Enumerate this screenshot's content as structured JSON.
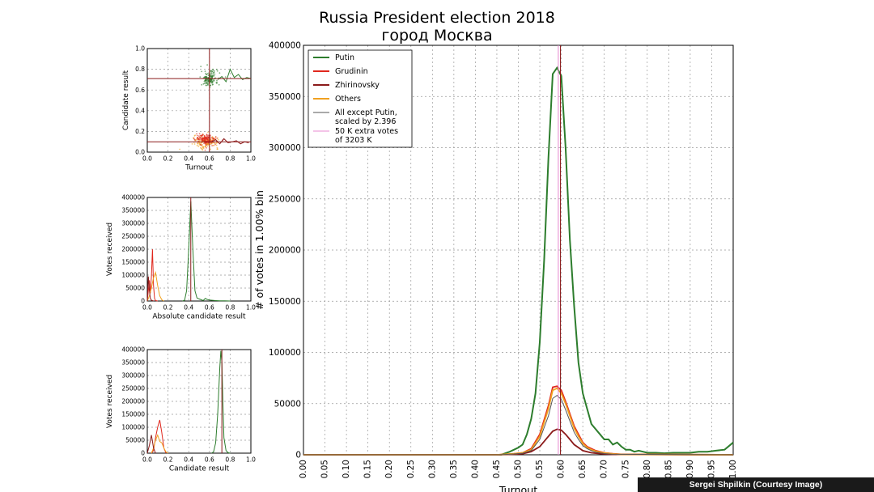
{
  "title": "Russia President election 2018",
  "subtitle": "город Москва",
  "credit": "Sergei Shpilkin (Courtesy Image)",
  "colors": {
    "putin": "#2d7d2d",
    "grudinin": "#e0281e",
    "zhirinovsky": "#8b1a1a",
    "others": "#f0a020",
    "all_except": "#555555",
    "extra": "#e88ad0"
  },
  "chart_data": [
    {
      "id": "scatter",
      "type": "scatter",
      "xlabel": "Turnout",
      "ylabel": "Candidate result",
      "xlim": [
        0,
        1
      ],
      "ylim": [
        0,
        1
      ],
      "xticks": [
        "0.0",
        "0.2",
        "0.4",
        "0.6",
        "0.8",
        "1.0"
      ],
      "yticks": [
        "0.0",
        "0.2",
        "0.4",
        "0.6",
        "0.8",
        "1.0"
      ],
      "grid": true,
      "hline": 0.71,
      "vline": 0.6,
      "clusters": [
        {
          "name": "Putin",
          "cx": 0.6,
          "cy": 0.71,
          "sx": 0.04,
          "sy": 0.04
        },
        {
          "name": "Others",
          "cx": 0.57,
          "cy": 0.1,
          "sx": 0.06,
          "sy": 0.03
        },
        {
          "name": "Grudinin",
          "cx": 0.57,
          "cy": 0.12,
          "sx": 0.05,
          "sy": 0.025
        }
      ],
      "putin_trend": {
        "x": [
          0.68,
          0.72,
          0.76,
          0.8,
          0.84,
          0.88,
          0.92,
          0.96,
          1.0
        ],
        "y": [
          0.7,
          0.73,
          0.68,
          0.8,
          0.72,
          0.75,
          0.7,
          0.72,
          0.71
        ]
      },
      "others_trend": {
        "x": [
          0.62,
          0.66,
          0.7,
          0.74,
          0.78,
          0.82,
          0.86,
          0.9,
          0.94,
          0.98
        ],
        "y": [
          0.1,
          0.12,
          0.08,
          0.13,
          0.09,
          0.1,
          0.11,
          0.08,
          0.1,
          0.09
        ]
      }
    },
    {
      "id": "absolute",
      "type": "line",
      "xlabel": "Absolute candidate result",
      "ylabel": "Votes received",
      "xlim": [
        0,
        1
      ],
      "ylim": [
        0,
        400000
      ],
      "xticks": [
        "0.0",
        "0.2",
        "0.4",
        "0.6",
        "0.8",
        "1.0"
      ],
      "yticks": [
        "0",
        "50000",
        "100000",
        "150000",
        "200000",
        "250000",
        "300000",
        "350000",
        "400000"
      ],
      "grid": true,
      "vline": 0.42,
      "series": [
        {
          "name": "Putin",
          "x": [
            0.34,
            0.36,
            0.38,
            0.4,
            0.42,
            0.44,
            0.46,
            0.48,
            0.5,
            0.52,
            0.54,
            0.56,
            0.58,
            0.6,
            0.65,
            0.7,
            0.75,
            0.8
          ],
          "y": [
            0,
            3000,
            40000,
            200000,
            385000,
            200000,
            40000,
            12000,
            8000,
            5000,
            2000,
            10000,
            6000,
            4000,
            2000,
            1000,
            500,
            0
          ]
        },
        {
          "name": "Grudinin",
          "x": [
            0,
            0.01,
            0.02,
            0.03,
            0.04,
            0.05,
            0.06,
            0.07,
            0.08,
            0.1
          ],
          "y": [
            0,
            40000,
            80000,
            30000,
            95000,
            200000,
            60000,
            10000,
            2000,
            0
          ]
        },
        {
          "name": "Others",
          "x": [
            0,
            0.02,
            0.04,
            0.06,
            0.08,
            0.1,
            0.12,
            0.14,
            0.16
          ],
          "y": [
            0,
            20000,
            50000,
            90000,
            110000,
            60000,
            20000,
            5000,
            0
          ]
        },
        {
          "name": "Zhirinovsky",
          "x": [
            0,
            0.01,
            0.02,
            0.03,
            0.04,
            0.06
          ],
          "y": [
            0,
            95000,
            40000,
            10000,
            3000,
            0
          ]
        }
      ]
    },
    {
      "id": "relative",
      "type": "line",
      "xlabel": "Candidate result",
      "ylabel": "Votes received",
      "xlim": [
        0,
        1
      ],
      "ylim": [
        0,
        400000
      ],
      "xticks": [
        "0.0",
        "0.2",
        "0.4",
        "0.6",
        "0.8",
        "1.0"
      ],
      "yticks": [
        "0",
        "50000",
        "100000",
        "150000",
        "200000",
        "250000",
        "300000",
        "350000",
        "400000"
      ],
      "grid": true,
      "vline": 0.72,
      "series": [
        {
          "name": "Putin",
          "x": [
            0.62,
            0.64,
            0.66,
            0.68,
            0.7,
            0.71,
            0.72,
            0.73,
            0.74,
            0.76,
            0.78,
            0.8
          ],
          "y": [
            0,
            5000,
            40000,
            150000,
            330000,
            395000,
            350000,
            200000,
            60000,
            10000,
            2000,
            0
          ]
        },
        {
          "name": "Grudinin",
          "x": [
            0.04,
            0.06,
            0.08,
            0.1,
            0.12,
            0.14,
            0.16,
            0.18
          ],
          "y": [
            0,
            10000,
            60000,
            100000,
            128000,
            80000,
            20000,
            0
          ]
        },
        {
          "name": "Others",
          "x": [
            0.04,
            0.06,
            0.08,
            0.1,
            0.12,
            0.14,
            0.16,
            0.18,
            0.2
          ],
          "y": [
            0,
            20000,
            50000,
            70000,
            45000,
            40000,
            20000,
            5000,
            0
          ]
        },
        {
          "name": "Zhirinovsky",
          "x": [
            0,
            0.02,
            0.04,
            0.06,
            0.08
          ],
          "y": [
            0,
            30000,
            70000,
            20000,
            0
          ]
        }
      ]
    },
    {
      "id": "main",
      "type": "line",
      "xlabel": "Turnout",
      "ylabel": "# of votes in 1.00% bin",
      "xlim": [
        0,
        1
      ],
      "ylim": [
        0,
        400000
      ],
      "xticks": [
        "0.00",
        "0.05",
        "0.10",
        "0.15",
        "0.20",
        "0.25",
        "0.30",
        "0.35",
        "0.40",
        "0.45",
        "0.50",
        "0.55",
        "0.60",
        "0.65",
        "0.70",
        "0.75",
        "0.80",
        "0.85",
        "0.90",
        "0.95",
        "1.00"
      ],
      "yticks": [
        "0",
        "50000",
        "100000",
        "150000",
        "200000",
        "250000",
        "300000",
        "350000",
        "400000"
      ],
      "grid": true,
      "vlines": [
        0.593,
        0.598
      ],
      "legend_position": "top-left",
      "series": [
        {
          "name": "Putin",
          "x": [
            0,
            0.45,
            0.46,
            0.47,
            0.48,
            0.49,
            0.5,
            0.51,
            0.52,
            0.53,
            0.54,
            0.55,
            0.56,
            0.57,
            0.58,
            0.59,
            0.6,
            0.61,
            0.62,
            0.63,
            0.64,
            0.65,
            0.66,
            0.67,
            0.68,
            0.69,
            0.7,
            0.71,
            0.72,
            0.73,
            0.74,
            0.75,
            0.76,
            0.77,
            0.78,
            0.79,
            0.8,
            0.82,
            0.84,
            0.86,
            0.88,
            0.9,
            0.92,
            0.94,
            0.96,
            0.98,
            1.0
          ],
          "y": [
            0,
            0,
            0,
            1500,
            3000,
            5000,
            7000,
            10000,
            20000,
            35000,
            60000,
            110000,
            190000,
            290000,
            372000,
            378000,
            370000,
            300000,
            210000,
            145000,
            90000,
            60000,
            45000,
            30000,
            25000,
            20000,
            15000,
            15000,
            10000,
            12000,
            8000,
            5000,
            5000,
            3000,
            4000,
            3000,
            2000,
            2000,
            1500,
            2000,
            2000,
            2000,
            3000,
            3000,
            4000,
            5000,
            12000
          ]
        },
        {
          "name": "Grudinin",
          "x": [
            0,
            0.45,
            0.47,
            0.49,
            0.51,
            0.53,
            0.55,
            0.57,
            0.58,
            0.59,
            0.6,
            0.61,
            0.62,
            0.63,
            0.64,
            0.65,
            0.66,
            0.67,
            0.68,
            0.7,
            0.72,
            0.74,
            1.0
          ],
          "y": [
            0,
            0,
            500,
            1000,
            2000,
            6000,
            20000,
            48000,
            66000,
            67000,
            63000,
            52000,
            40000,
            28000,
            20000,
            12000,
            8000,
            6000,
            4000,
            2000,
            1000,
            500,
            0
          ]
        },
        {
          "name": "Zhirinovsky",
          "x": [
            0,
            0.45,
            0.47,
            0.49,
            0.51,
            0.53,
            0.55,
            0.57,
            0.58,
            0.59,
            0.6,
            0.61,
            0.62,
            0.63,
            0.64,
            0.65,
            0.66,
            0.67,
            0.68,
            0.7,
            0.72,
            1.0
          ],
          "y": [
            0,
            0,
            200,
            500,
            1000,
            3000,
            8000,
            18000,
            23000,
            25000,
            24000,
            20000,
            15000,
            10000,
            7000,
            4000,
            3000,
            2000,
            1500,
            800,
            300,
            0
          ]
        },
        {
          "name": "Others",
          "x": [
            0,
            0.45,
            0.47,
            0.49,
            0.51,
            0.53,
            0.55,
            0.57,
            0.58,
            0.59,
            0.6,
            0.61,
            0.62,
            0.63,
            0.64,
            0.65,
            0.66,
            0.67,
            0.68,
            0.7,
            0.72,
            0.74,
            1.0
          ],
          "y": [
            0,
            0,
            500,
            1000,
            2000,
            5000,
            18000,
            45000,
            63000,
            65000,
            60000,
            50000,
            38000,
            26000,
            18000,
            11000,
            7000,
            5000,
            3500,
            1800,
            900,
            400,
            0
          ]
        },
        {
          "name": "All except Putin, scaled by 2.396",
          "x": [
            0,
            0.45,
            0.47,
            0.49,
            0.51,
            0.53,
            0.55,
            0.57,
            0.58,
            0.59,
            0.6,
            0.61,
            0.62,
            0.63,
            0.64,
            0.65,
            0.66,
            0.67,
            0.68,
            0.7,
            0.72,
            1.0
          ],
          "y": [
            0,
            0,
            300,
            800,
            1500,
            4000,
            15000,
            38000,
            55000,
            58000,
            54000,
            44000,
            33000,
            22000,
            15000,
            9000,
            6000,
            4000,
            2500,
            1200,
            500,
            0
          ]
        },
        {
          "name": "50 K extra votes\n of 3203 K",
          "x": [],
          "y": []
        }
      ],
      "legend": [
        "Putin",
        "Grudinin",
        "Zhirinovsky",
        "Others",
        "All except Putin,",
        "scaled by 2.396",
        "50 K extra votes",
        " of 3203 K"
      ]
    }
  ]
}
